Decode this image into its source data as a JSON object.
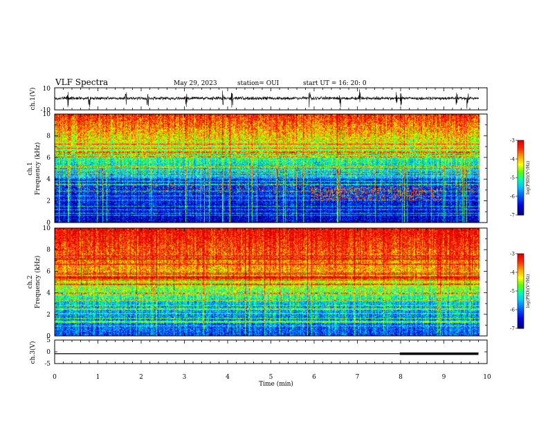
{
  "header": {
    "title": "VLF Spectra",
    "date": "May 29, 2023",
    "station": "station= OUI",
    "start": "start  UT =   16: 20: 0"
  },
  "colors": {
    "spectrogram_palette": [
      "#0000b4",
      "#0000ff",
      "#0064ff",
      "#00c8ff",
      "#00ffa0",
      "#64ff00",
      "#ffff00",
      "#ffa000",
      "#ff3000",
      "#e60000"
    ],
    "trace": "#000000",
    "axis": "#000000"
  },
  "chart_data": [
    {
      "type": "line",
      "name": "ch1-waveform",
      "ylabel": "ch.1(V)",
      "ylim": [
        -10,
        10
      ],
      "yticks": [
        "10",
        "-10"
      ],
      "xlim": [
        0,
        9.8
      ],
      "baseline": 0.5,
      "amplitude": 1.2,
      "spike_times": [
        0.3,
        0.8,
        1.65,
        2.15,
        3.05,
        3.9,
        4.1,
        5.9,
        6.6,
        7.05,
        7.9,
        8.0,
        9.3,
        9.55
      ]
    },
    {
      "type": "heatmap",
      "name": "ch1-spectrogram",
      "ylabel": "ch.1\nFrequency  (kHz)",
      "ylabel_lines": [
        "ch.1",
        "Frequency  (kHz)"
      ],
      "ylim": [
        0,
        10
      ],
      "yticks": [
        "0",
        "2",
        "4",
        "6",
        "8",
        "10"
      ],
      "xlim": [
        0,
        9.8
      ],
      "colorbar": {
        "ticks": [
          "-3",
          "-4",
          "-5",
          "-6",
          "-7"
        ],
        "label": "log(PSD)(V²/Hz)",
        "range": [
          -7,
          -3
        ]
      }
    },
    {
      "type": "heatmap",
      "name": "ch2-spectrogram",
      "ylabel": "ch.2\nFrequency  (kHz)",
      "ylabel_lines": [
        "ch.2",
        "Frequency  (kHz)"
      ],
      "ylim": [
        0,
        10
      ],
      "yticks": [
        "0",
        "2",
        "4",
        "6",
        "8",
        "10"
      ],
      "xlim": [
        0,
        9.8
      ],
      "colorbar": {
        "ticks": [
          "-3",
          "-4",
          "-5",
          "-6",
          "-7"
        ],
        "label": "log(PSD)(V²/Hz)",
        "range": [
          -7,
          -3
        ]
      }
    },
    {
      "type": "line",
      "name": "ch3-level",
      "ylabel": "ch.3(V)",
      "ylim": [
        -5,
        5
      ],
      "yticks": [
        "5",
        "0",
        "-5"
      ],
      "x": [
        0,
        7.98,
        7.98,
        9.8
      ],
      "y": [
        -0.8,
        -0.8,
        -0.8,
        -0.8
      ],
      "thick_from": 7.98
    }
  ],
  "xaxis": {
    "label": "Time  (min)",
    "range": [
      0,
      10
    ],
    "ticks": [
      "0",
      "1",
      "2",
      "3",
      "4",
      "5",
      "6",
      "7",
      "8",
      "9",
      "10"
    ]
  }
}
